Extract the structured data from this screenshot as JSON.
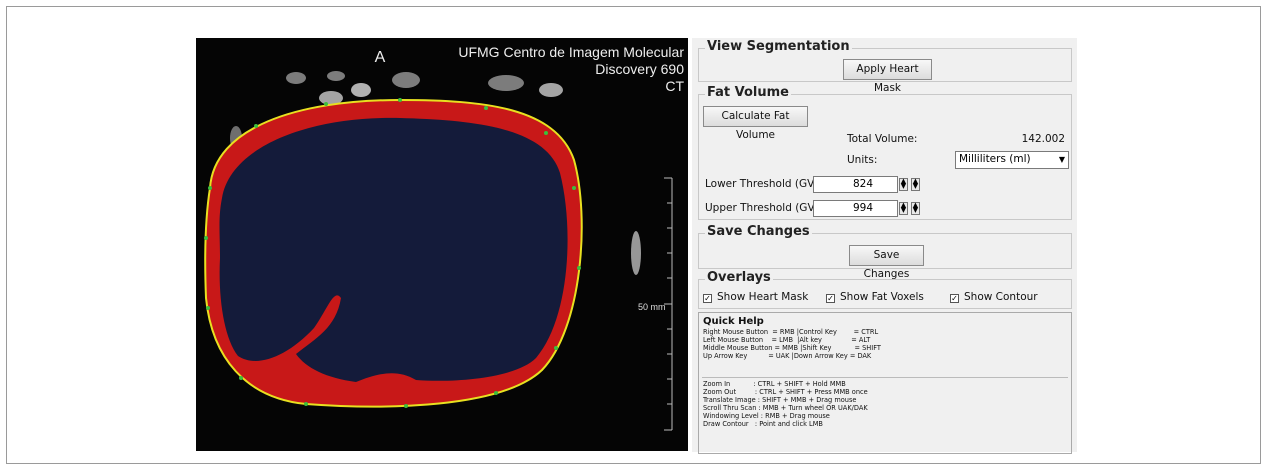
{
  "viewer": {
    "label": "A",
    "institution": "UFMG Centro de Imagem Molecular",
    "scanner": "Discovery 690",
    "modality": "CT",
    "scale": "50 mm"
  },
  "view_segmentation": {
    "title": "View Segmentation",
    "button": "Apply Heart Mask"
  },
  "fat_volume": {
    "title": "Fat Volume",
    "button": "Calculate Fat Volume",
    "total_label": "Total Volume:",
    "total_value": 142.002,
    "units_label": "Units:",
    "units_value": "Milliliters (ml)",
    "lower_label": "Lower Threshold (GV):",
    "lower_value": 824,
    "upper_label": "Upper Threshold (GV):",
    "upper_value": 994
  },
  "save_changes": {
    "title": "Save Changes",
    "button": "Save Changes"
  },
  "overlays": {
    "title": "Overlays",
    "options": [
      "Show Heart Mask",
      "Show Fat Voxels",
      "Show Contour"
    ]
  },
  "quick_help": {
    "title": "Quick Help",
    "keys": [
      "Right Mouse Button  = RMB |Control Key        = CTRL",
      "Left Mouse Button    = LMB  |Alt key              = ALT",
      "Middle Mouse Button = MMB |Shift Key           = SHIFT",
      "Up Arrow Key          = UAK |Down Arrow Key = DAK"
    ],
    "actions": [
      "Zoom In           : CTRL + SHIFT + Hold MMB",
      "Zoom Out         : CTRL + SHIFT + Press MMB once",
      "Translate Image : SHIFT + MMB + Drag mouse",
      "Scroll Thru Scan : MMB + Turn wheel OR UAK/DAK",
      "Windowing Level : RMB + Drag mouse",
      "Draw Contour   : Point and click LMB"
    ]
  }
}
